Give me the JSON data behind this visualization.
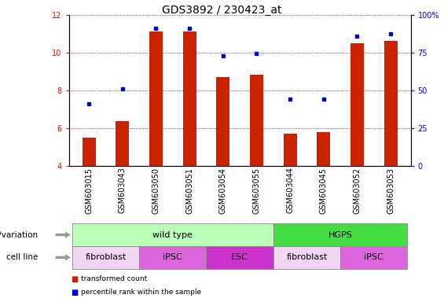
{
  "title": "GDS3892 / 230423_at",
  "samples": [
    "GSM603015",
    "GSM603043",
    "GSM603050",
    "GSM603051",
    "GSM603054",
    "GSM603055",
    "GSM603044",
    "GSM603045",
    "GSM603052",
    "GSM603053"
  ],
  "red_values": [
    5.5,
    6.4,
    11.15,
    11.15,
    8.7,
    8.85,
    5.7,
    5.8,
    10.5,
    10.65
  ],
  "blue_values": [
    7.3,
    8.1,
    11.3,
    11.3,
    9.85,
    9.95,
    7.55,
    7.55,
    10.9,
    11.0
  ],
  "ylim_left": [
    4,
    12
  ],
  "ylim_right": [
    0,
    100
  ],
  "yticks_left": [
    4,
    6,
    8,
    10,
    12
  ],
  "yticks_right": [
    0,
    25,
    50,
    75,
    100
  ],
  "ytick_labels_right": [
    "0",
    "25",
    "50",
    "75",
    "100%"
  ],
  "bar_color": "#cc2200",
  "dot_color": "#0000cc",
  "bar_width": 0.4,
  "genotype_groups": [
    {
      "label": "wild type",
      "start": 0,
      "end": 6,
      "color": "#bbffbb"
    },
    {
      "label": "HGPS",
      "start": 6,
      "end": 10,
      "color": "#44dd44"
    }
  ],
  "cell_line_groups": [
    {
      "label": "fibroblast",
      "start": 0,
      "end": 2,
      "color": "#f5d5f5"
    },
    {
      "label": "iPSC",
      "start": 2,
      "end": 4,
      "color": "#dd66dd"
    },
    {
      "label": "ESC",
      "start": 4,
      "end": 6,
      "color": "#cc33cc"
    },
    {
      "label": "fibroblast",
      "start": 6,
      "end": 8,
      "color": "#f5d5f5"
    },
    {
      "label": "iPSC",
      "start": 8,
      "end": 10,
      "color": "#dd66dd"
    }
  ],
  "row_label_cellline": "cell line",
  "legend_red": "transformed count",
  "legend_blue": "percentile rank within the sample",
  "title_fontsize": 10,
  "tick_fontsize": 7,
  "label_fontsize": 8,
  "annot_fontsize": 8
}
